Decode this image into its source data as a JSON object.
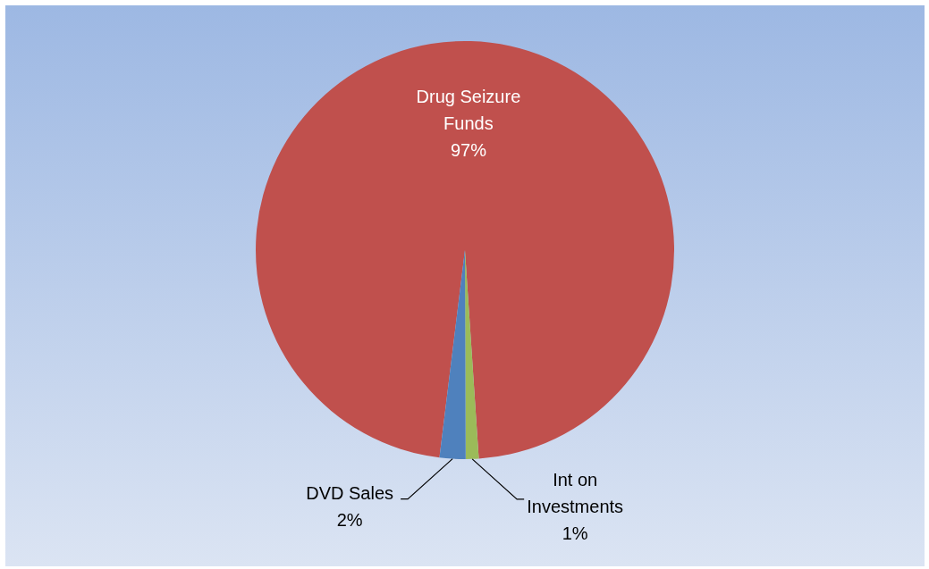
{
  "chart_data": {
    "type": "pie",
    "categories": [
      "Drug Seizure Funds",
      "Int on Investments",
      "DVD Sales"
    ],
    "values": [
      97,
      1,
      2
    ],
    "colors": [
      "#c0504d",
      "#9bbb59",
      "#4f81bd"
    ],
    "value_labels": [
      "97%",
      "1%",
      "2%"
    ],
    "legend": false
  }
}
